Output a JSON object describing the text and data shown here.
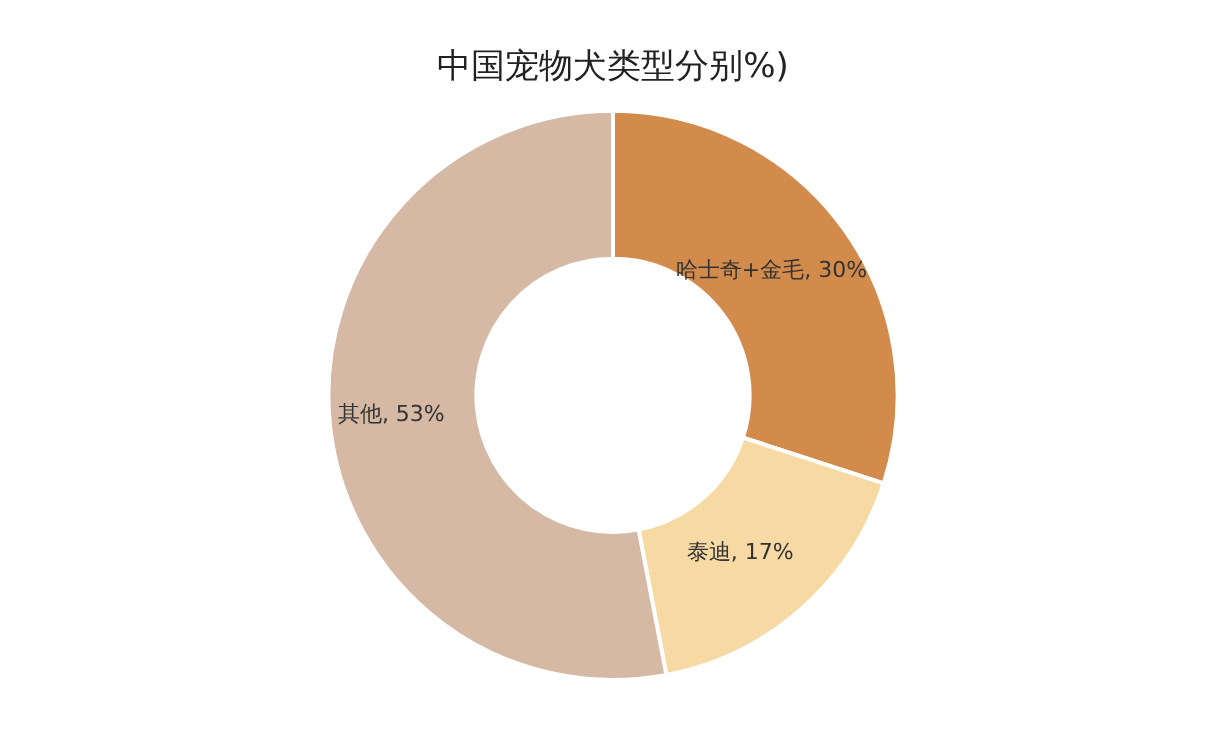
{
  "chart_data": {
    "type": "donut",
    "title": "中国宠物犬类型分别%)",
    "categories": [
      "哈士奇+金毛",
      "泰迪",
      "其他"
    ],
    "values": [
      30,
      17,
      53
    ],
    "colors": [
      "#d38b4c",
      "#f7d9a3",
      "#d5b9a5"
    ],
    "value_labels": [
      ", 30%",
      ", 17%",
      ", 53%"
    ],
    "legend": false
  }
}
